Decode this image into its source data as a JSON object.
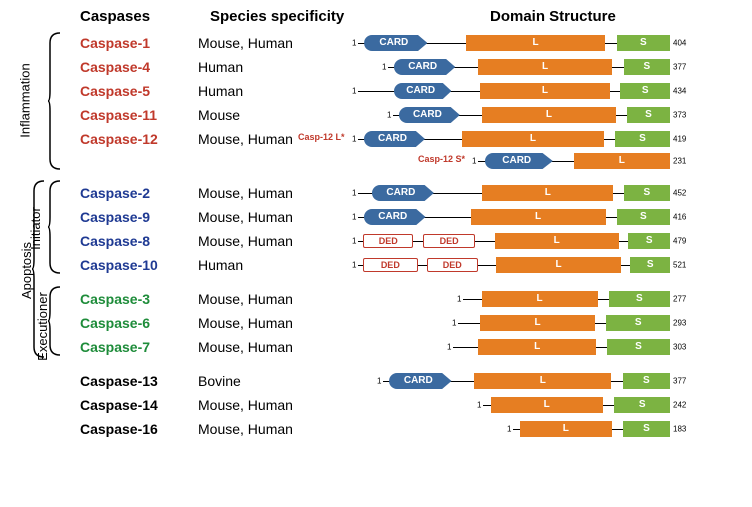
{
  "headers": {
    "c1": "Caspases",
    "c2": "Species specificity",
    "c3": "Domain Structure"
  },
  "vlabels": {
    "inflammation": "Inflammation",
    "apoptosis": "Apoptosis",
    "initiator": "Initiator",
    "executioner": "Executioner"
  },
  "colors": {
    "inflammation": "#c0392b",
    "initiator": "#1f3a93",
    "executioner": "#1e8c3a",
    "other": "#000000",
    "card_fill": "#3b6aa0",
    "L_fill": "#e67e22",
    "S_fill": "#7cb342",
    "ded_border": "#c0392b",
    "ded_text": "#c0392b",
    "bracket": "#000000"
  },
  "domain_labels": {
    "card": "CARD",
    "L": "L",
    "S": "S",
    "ded": "DED"
  },
  "casp12_labels": {
    "long": "Casp-12 L*",
    "short": "Casp-12 S*"
  },
  "scale_max": 540,
  "rows": [
    {
      "id": "c1",
      "name": "Caspase-1",
      "group": "inflammation",
      "species": "Mouse, Human",
      "len": 404,
      "domains": [
        {
          "type": "CARD",
          "start": 8,
          "end": 90
        },
        {
          "type": "L",
          "start": 140,
          "end": 320
        },
        {
          "type": "S",
          "start": 335,
          "end": 404
        }
      ]
    },
    {
      "id": "c4",
      "name": "Caspase-4",
      "group": "inflammation",
      "species": "Human",
      "len": 377,
      "domains": [
        {
          "type": "CARD",
          "start": 8,
          "end": 90
        },
        {
          "type": "L",
          "start": 120,
          "end": 300
        },
        {
          "type": "S",
          "start": 315,
          "end": 377
        }
      ],
      "offset": 30
    },
    {
      "id": "c5",
      "name": "Caspase-5",
      "group": "inflammation",
      "species": "Human",
      "len": 434,
      "domains": [
        {
          "type": "CARD",
          "start": 50,
          "end": 130
        },
        {
          "type": "L",
          "start": 170,
          "end": 350
        },
        {
          "type": "S",
          "start": 365,
          "end": 434
        }
      ]
    },
    {
      "id": "c11",
      "name": "Caspase-11",
      "group": "inflammation",
      "species": "Mouse",
      "len": 373,
      "domains": [
        {
          "type": "CARD",
          "start": 8,
          "end": 90
        },
        {
          "type": "L",
          "start": 120,
          "end": 300
        },
        {
          "type": "S",
          "start": 315,
          "end": 373
        }
      ],
      "offset": 35
    },
    {
      "id": "c12l",
      "name": "Caspase-12",
      "group": "inflammation",
      "species": "Mouse, Human",
      "len": 419,
      "domains": [
        {
          "type": "CARD",
          "start": 8,
          "end": 90
        },
        {
          "type": "L",
          "start": 140,
          "end": 330
        },
        {
          "type": "S",
          "start": 345,
          "end": 419
        }
      ],
      "inline": "long"
    },
    {
      "id": "c12s",
      "name": "",
      "group": "inflammation",
      "species": "",
      "len": 231,
      "domains": [
        {
          "type": "CARD",
          "start": 8,
          "end": 90
        },
        {
          "type": "L",
          "start": 115,
          "end": 231
        }
      ],
      "offset": 120,
      "inline": "short",
      "short": true
    },
    {
      "id": "c2",
      "name": "Caspase-2",
      "group": "initiator",
      "species": "Mouse, Human",
      "len": 452,
      "domains": [
        {
          "type": "CARD",
          "start": 20,
          "end": 110
        },
        {
          "type": "L",
          "start": 180,
          "end": 370
        },
        {
          "type": "S",
          "start": 385,
          "end": 452
        }
      ]
    },
    {
      "id": "c9",
      "name": "Caspase-9",
      "group": "initiator",
      "species": "Mouse, Human",
      "len": 416,
      "domains": [
        {
          "type": "CARD",
          "start": 8,
          "end": 90
        },
        {
          "type": "L",
          "start": 150,
          "end": 330
        },
        {
          "type": "S",
          "start": 345,
          "end": 416
        }
      ]
    },
    {
      "id": "c8",
      "name": "Caspase-8",
      "group": "initiator",
      "species": "Mouse, Human",
      "len": 479,
      "domains": [
        {
          "type": "DED",
          "start": 8,
          "end": 85
        },
        {
          "type": "DED",
          "start": 100,
          "end": 180
        },
        {
          "type": "L",
          "start": 210,
          "end": 400
        },
        {
          "type": "S",
          "start": 415,
          "end": 479
        }
      ]
    },
    {
      "id": "c10",
      "name": "Caspase-10",
      "group": "initiator",
      "species": "Human",
      "len": 521,
      "domains": [
        {
          "type": "DED",
          "start": 8,
          "end": 100
        },
        {
          "type": "DED",
          "start": 115,
          "end": 200
        },
        {
          "type": "L",
          "start": 230,
          "end": 440
        },
        {
          "type": "S",
          "start": 455,
          "end": 521
        }
      ]
    },
    {
      "id": "c3",
      "name": "Caspase-3",
      "group": "executioner",
      "species": "Mouse, Human",
      "len": 277,
      "domains": [
        {
          "type": "L",
          "start": 25,
          "end": 180
        },
        {
          "type": "S",
          "start": 195,
          "end": 277
        }
      ],
      "offset": 105
    },
    {
      "id": "c6",
      "name": "Caspase-6",
      "group": "executioner",
      "species": "Mouse, Human",
      "len": 293,
      "domains": [
        {
          "type": "L",
          "start": 30,
          "end": 190
        },
        {
          "type": "S",
          "start": 205,
          "end": 293
        }
      ],
      "offset": 100
    },
    {
      "id": "c7",
      "name": "Caspase-7",
      "group": "executioner",
      "species": "Mouse, Human",
      "len": 303,
      "domains": [
        {
          "type": "L",
          "start": 35,
          "end": 200
        },
        {
          "type": "S",
          "start": 215,
          "end": 303
        }
      ],
      "offset": 95
    },
    {
      "id": "c13",
      "name": "Caspase-13",
      "group": "other",
      "species": "Bovine",
      "len": 377,
      "domains": [
        {
          "type": "CARD",
          "start": 8,
          "end": 90
        },
        {
          "type": "L",
          "start": 120,
          "end": 300
        },
        {
          "type": "S",
          "start": 315,
          "end": 377
        }
      ],
      "offset": 25
    },
    {
      "id": "c14",
      "name": "Caspase-14",
      "group": "other",
      "species": "Mouse, Human",
      "len": 242,
      "domains": [
        {
          "type": "L",
          "start": 10,
          "end": 155
        },
        {
          "type": "S",
          "start": 170,
          "end": 242
        }
      ],
      "offset": 125
    },
    {
      "id": "c16",
      "name": "Caspase-16",
      "group": "other",
      "species": "Mouse, Human",
      "len": 183,
      "domains": [
        {
          "type": "L",
          "start": 8,
          "end": 115
        },
        {
          "type": "S",
          "start": 128,
          "end": 183
        }
      ],
      "offset": 155
    }
  ],
  "layout": {
    "domain_area_width": 330,
    "spacers_after": [
      "c12s",
      "c10",
      "c7"
    ]
  }
}
